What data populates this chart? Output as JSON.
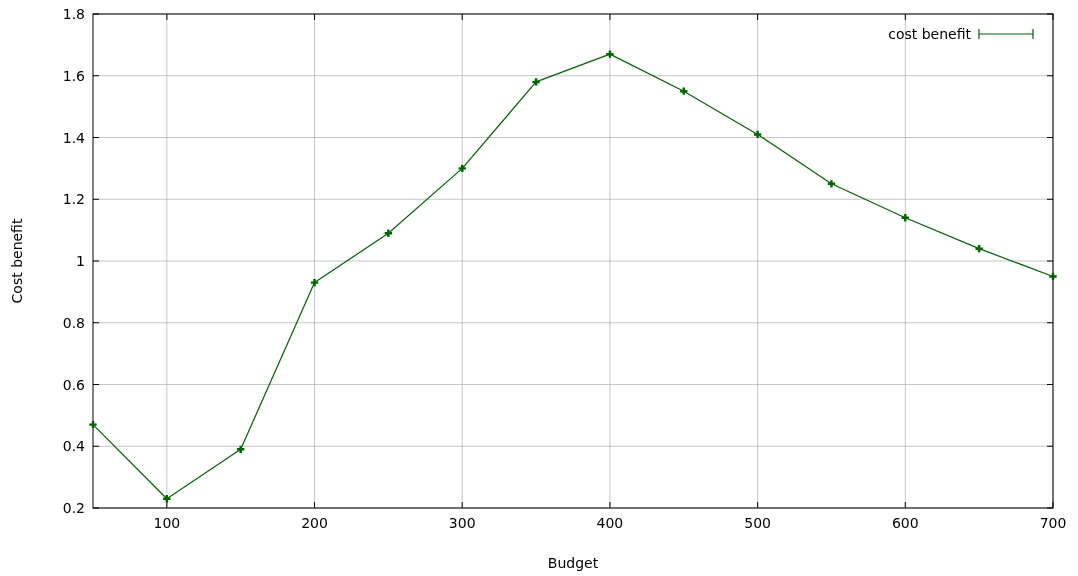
{
  "chart_data": {
    "type": "line",
    "xlabel": "Budget",
    "ylabel": "Cost benefit",
    "x": [
      50,
      100,
      150,
      200,
      250,
      300,
      350,
      400,
      450,
      500,
      550,
      600,
      650,
      700
    ],
    "series": [
      {
        "name": "cost benefit",
        "color": "#006400",
        "values": [
          0.47,
          0.23,
          0.39,
          0.93,
          1.09,
          1.3,
          1.58,
          1.67,
          1.55,
          1.41,
          1.25,
          1.14,
          1.04,
          0.95
        ]
      }
    ],
    "xlim": [
      50,
      700
    ],
    "xticks": [
      100,
      200,
      300,
      400,
      500,
      600,
      700
    ],
    "ylim": [
      0.2,
      1.8
    ],
    "yticks": [
      0.2,
      0.4,
      0.6,
      0.8,
      1,
      1.2,
      1.4,
      1.6,
      1.8
    ],
    "grid": true,
    "legend": "top right",
    "marker": "cross",
    "line_style": "solid"
  }
}
